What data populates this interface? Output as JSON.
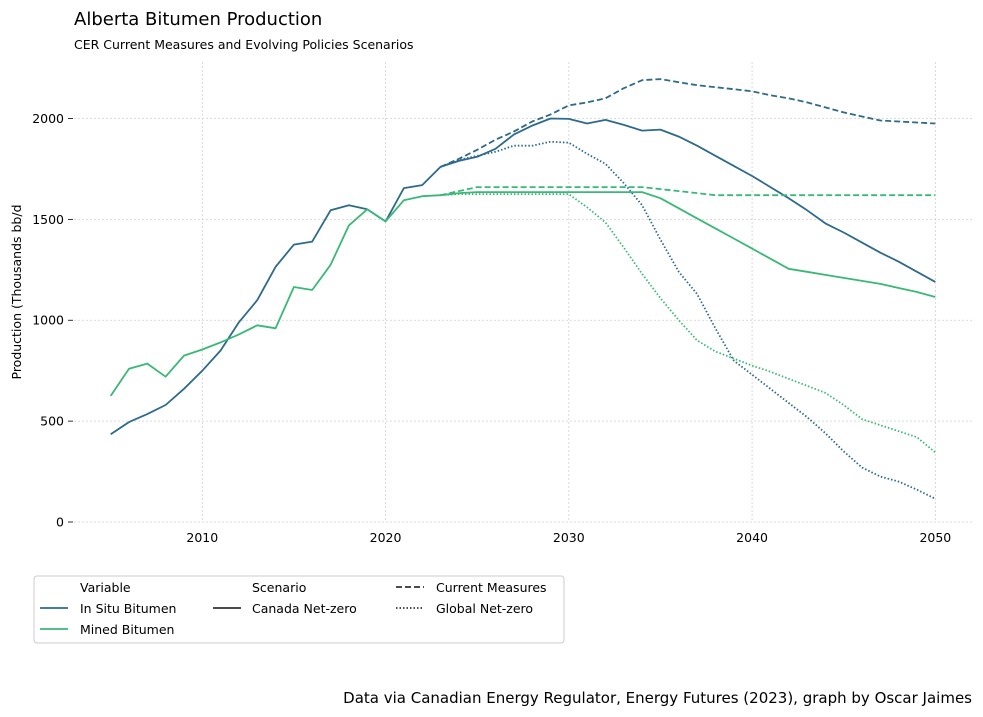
{
  "chart_data": {
    "type": "line",
    "title": "Alberta Bitumen Production",
    "subtitle": "CER Current Measures and Evolving Policies Scenarios",
    "xlabel": "",
    "ylabel": "Production (Thousands bb/d",
    "xlim": [
      2003,
      2052
    ],
    "ylim": [
      0,
      2280
    ],
    "xticks": [
      2010,
      2020,
      2030,
      2040,
      2050
    ],
    "yticks": [
      0,
      500,
      1000,
      1500,
      2000
    ],
    "grid": true,
    "legend_position": "bottom-left",
    "legend": {
      "variable_header": "Variable",
      "scenario_header": "Scenario",
      "variables": [
        {
          "label": "In Situ Bitumen",
          "color": "#2e6a8a"
        },
        {
          "label": "Mined Bitumen",
          "color": "#3ab878"
        }
      ],
      "scenarios": [
        {
          "label": "Canada Net-zero",
          "dash": "solid"
        },
        {
          "label": "Current Measures",
          "dash": "dashed"
        },
        {
          "label": "Global Net-zero",
          "dash": "dotted"
        }
      ]
    },
    "series": [
      {
        "variable": "In Situ Bitumen",
        "scenario": "Canada Net-zero",
        "x": [
          2005,
          2006,
          2007,
          2008,
          2009,
          2010,
          2011,
          2012,
          2013,
          2014,
          2015,
          2016,
          2017,
          2018,
          2019,
          2020,
          2021,
          2022,
          2023,
          2024,
          2025,
          2026,
          2027,
          2028,
          2029,
          2030,
          2031,
          2032,
          2033,
          2034,
          2035,
          2036,
          2037,
          2038,
          2039,
          2040,
          2041,
          2042,
          2043,
          2044,
          2045,
          2046,
          2047,
          2048,
          2049,
          2050
        ],
        "y": [
          435,
          495,
          535,
          580,
          660,
          750,
          850,
          990,
          1100,
          1265,
          1375,
          1390,
          1545,
          1570,
          1550,
          1490,
          1655,
          1670,
          1760,
          1790,
          1810,
          1850,
          1920,
          1965,
          2000,
          1998,
          1975,
          1993,
          1968,
          1940,
          1945,
          1910,
          1865,
          1815,
          1765,
          1715,
          1660,
          1605,
          1545,
          1480,
          1435,
          1385,
          1335,
          1290,
          1240,
          1190
        ]
      },
      {
        "variable": "In Situ Bitumen",
        "scenario": "Current Measures",
        "x": [
          2023,
          2024,
          2025,
          2026,
          2027,
          2028,
          2029,
          2030,
          2031,
          2032,
          2033,
          2034,
          2035,
          2036,
          2037,
          2038,
          2039,
          2040,
          2041,
          2042,
          2043,
          2044,
          2045,
          2046,
          2047,
          2048,
          2049,
          2050
        ],
        "y": [
          1760,
          1800,
          1845,
          1895,
          1935,
          1985,
          2020,
          2065,
          2080,
          2100,
          2150,
          2190,
          2195,
          2180,
          2165,
          2155,
          2145,
          2135,
          2115,
          2100,
          2080,
          2055,
          2030,
          2010,
          1990,
          1985,
          1980,
          1975
        ]
      },
      {
        "variable": "In Situ Bitumen",
        "scenario": "Global Net-zero",
        "x": [
          2023,
          2024,
          2025,
          2026,
          2027,
          2028,
          2029,
          2030,
          2031,
          2032,
          2033,
          2034,
          2035,
          2036,
          2037,
          2038,
          2039,
          2040,
          2041,
          2042,
          2043,
          2044,
          2045,
          2046,
          2047,
          2048,
          2049,
          2050
        ],
        "y": [
          1760,
          1795,
          1815,
          1835,
          1865,
          1865,
          1885,
          1880,
          1825,
          1775,
          1680,
          1570,
          1400,
          1240,
          1130,
          960,
          800,
          730,
          660,
          590,
          520,
          440,
          350,
          270,
          225,
          200,
          160,
          115
        ]
      },
      {
        "variable": "Mined Bitumen",
        "scenario": "Canada Net-zero",
        "x": [
          2005,
          2006,
          2007,
          2008,
          2009,
          2010,
          2011,
          2012,
          2013,
          2014,
          2015,
          2016,
          2017,
          2018,
          2019,
          2020,
          2021,
          2022,
          2023,
          2024,
          2025,
          2026,
          2027,
          2028,
          2029,
          2030,
          2031,
          2032,
          2033,
          2034,
          2035,
          2036,
          2037,
          2038,
          2039,
          2040,
          2041,
          2042,
          2043,
          2044,
          2045,
          2046,
          2047,
          2048,
          2049,
          2050
        ],
        "y": [
          625,
          760,
          785,
          720,
          825,
          855,
          890,
          930,
          975,
          960,
          1165,
          1150,
          1275,
          1470,
          1550,
          1490,
          1595,
          1615,
          1620,
          1630,
          1635,
          1635,
          1635,
          1635,
          1635,
          1635,
          1635,
          1635,
          1635,
          1635,
          1605,
          1555,
          1505,
          1455,
          1405,
          1355,
          1305,
          1255,
          1240,
          1225,
          1210,
          1195,
          1180,
          1160,
          1140,
          1115
        ]
      },
      {
        "variable": "Mined Bitumen",
        "scenario": "Current Measures",
        "x": [
          2023,
          2024,
          2025,
          2026,
          2027,
          2028,
          2029,
          2030,
          2031,
          2032,
          2033,
          2034,
          2035,
          2036,
          2037,
          2038,
          2039,
          2040,
          2041,
          2042,
          2043,
          2044,
          2045,
          2046,
          2047,
          2048,
          2049,
          2050
        ],
        "y": [
          1620,
          1640,
          1660,
          1660,
          1660,
          1660,
          1660,
          1660,
          1660,
          1660,
          1660,
          1660,
          1650,
          1640,
          1630,
          1620,
          1620,
          1620,
          1620,
          1620,
          1620,
          1620,
          1620,
          1620,
          1620,
          1620,
          1620,
          1620
        ]
      },
      {
        "variable": "Mined Bitumen",
        "scenario": "Global Net-zero",
        "x": [
          2023,
          2024,
          2025,
          2026,
          2027,
          2028,
          2029,
          2030,
          2031,
          2032,
          2033,
          2034,
          2035,
          2036,
          2037,
          2038,
          2039,
          2040,
          2041,
          2042,
          2043,
          2044,
          2045,
          2046,
          2047,
          2048,
          2049,
          2050
        ],
        "y": [
          1620,
          1625,
          1625,
          1625,
          1625,
          1625,
          1625,
          1625,
          1560,
          1485,
          1360,
          1230,
          1110,
          1000,
          900,
          845,
          810,
          775,
          745,
          710,
          675,
          640,
          580,
          510,
          480,
          450,
          420,
          345
        ]
      }
    ]
  },
  "caption": "Data via Canadian Energy Regulator, Energy Futures (2023), graph by Oscar Jaimes"
}
